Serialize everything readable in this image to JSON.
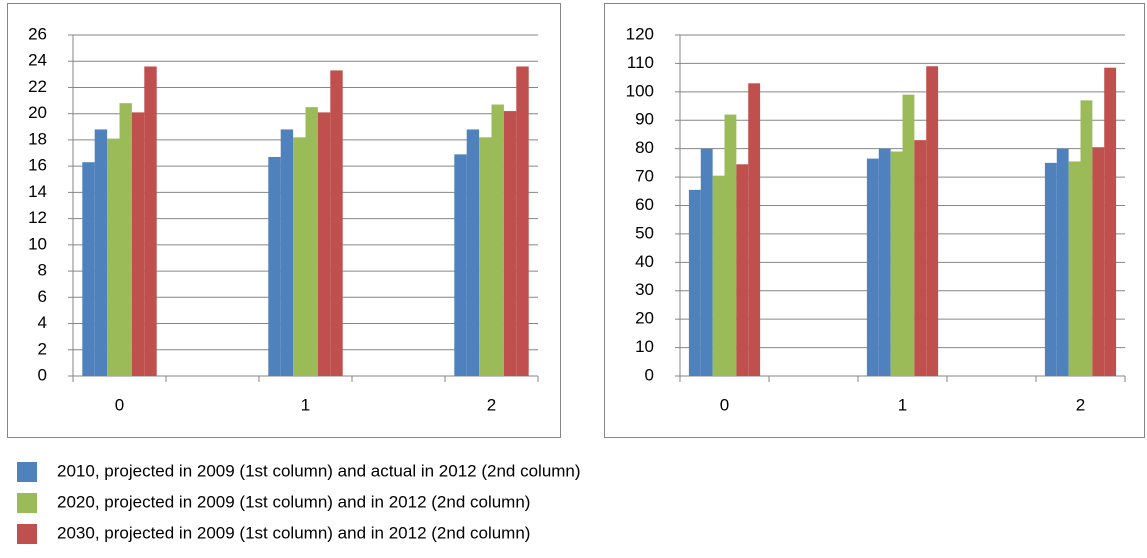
{
  "chart_data": [
    {
      "type": "bar",
      "categories": [
        "0",
        "1",
        "2"
      ],
      "ylim": [
        0,
        26
      ],
      "yticks": [
        0,
        2,
        4,
        6,
        8,
        10,
        12,
        14,
        16,
        18,
        20,
        22,
        24,
        26
      ],
      "grid": true,
      "series": [
        {
          "name": "2010, projected in 2009 (1st column) and actual in 2012 (2nd column)",
          "color": "#4f81bd",
          "values": [
            [
              16.3,
              18.8
            ],
            [
              16.7,
              18.8
            ],
            [
              16.9,
              18.8
            ]
          ]
        },
        {
          "name": "2020, projected in 2009 (1st column) and in 2012 (2nd column)",
          "color": "#9bbb59",
          "values": [
            [
              18.1,
              20.8
            ],
            [
              18.2,
              20.5
            ],
            [
              18.2,
              20.7
            ]
          ]
        },
        {
          "name": "2030, projected in 2009 (1st column) and in 2012 (2nd column)",
          "color": "#c0504d",
          "values": [
            [
              20.1,
              23.6
            ],
            [
              20.1,
              23.3
            ],
            [
              20.2,
              23.6
            ]
          ]
        }
      ]
    },
    {
      "type": "bar",
      "categories": [
        "0",
        "1",
        "2"
      ],
      "ylim": [
        0,
        120
      ],
      "yticks": [
        0,
        10,
        20,
        30,
        40,
        50,
        60,
        70,
        80,
        90,
        100,
        110,
        120
      ],
      "grid": true,
      "series": [
        {
          "color": "#4f81bd",
          "values": [
            [
              65.5,
              80
            ],
            [
              76.5,
              80
            ],
            [
              75,
              80
            ]
          ]
        },
        {
          "color": "#9bbb59",
          "values": [
            [
              70.5,
              92
            ],
            [
              79,
              99
            ],
            [
              75.5,
              97
            ]
          ]
        },
        {
          "color": "#c0504d",
          "values": [
            [
              74.5,
              103
            ],
            [
              83,
              109
            ],
            [
              80.5,
              108.5
            ]
          ]
        }
      ]
    }
  ],
  "legend_position": "bottom"
}
